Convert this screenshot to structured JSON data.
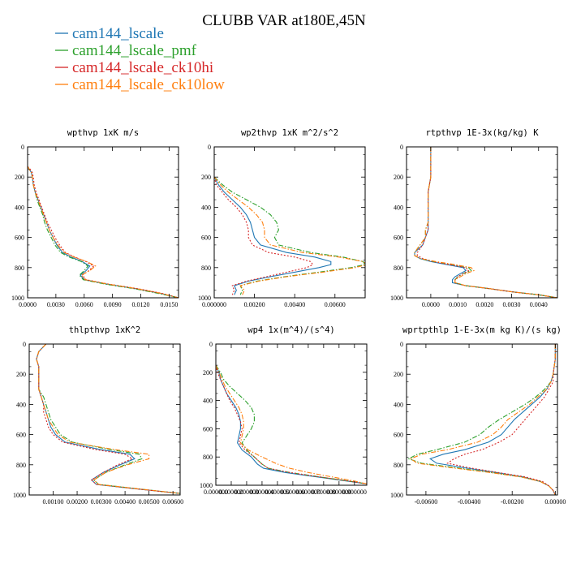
{
  "figure": {
    "title": "CLUBB VAR at180E,45N"
  },
  "legend": [
    {
      "name": "cam144_lscale",
      "color": "#1f77b4",
      "dash": "solid"
    },
    {
      "name": "cam144_lscale_pmf",
      "color": "#2ca02c",
      "dash": "dashdot"
    },
    {
      "name": "cam144_lscale_ck10hi",
      "color": "#d62728",
      "dash": "dot"
    },
    {
      "name": "cam144_lscale_ck10low",
      "color": "#ff7f0e",
      "dash": "dashdot"
    }
  ],
  "chart_data": [
    {
      "type": "line",
      "title": "wpthvp  1xK m/s",
      "xlim": [
        0,
        0.016
      ],
      "ylim": [
        1000,
        0
      ],
      "xticks": [
        "0.0000",
        "0.0030",
        "0.0060",
        "0.0090",
        "0.0120",
        "0.0150"
      ],
      "xtick_values": [
        0,
        0.003,
        0.006,
        0.009,
        0.012,
        0.015
      ],
      "yticks": [
        "0",
        "200",
        "400",
        "600",
        "800",
        "1000"
      ],
      "y": [
        130,
        150,
        170,
        200,
        250,
        300,
        350,
        400,
        450,
        500,
        550,
        600,
        650,
        700,
        730,
        760,
        790,
        820,
        850,
        880,
        910,
        940,
        970,
        1000
      ],
      "series": [
        {
          "name": "cam144_lscale",
          "x": [
            0.0,
            0.0002,
            0.0004,
            0.0005,
            0.0006,
            0.0008,
            0.0011,
            0.0014,
            0.0017,
            0.002,
            0.0023,
            0.0027,
            0.0031,
            0.0037,
            0.0046,
            0.0058,
            0.0066,
            0.0062,
            0.0056,
            0.006,
            0.0085,
            0.0115,
            0.014,
            0.016
          ]
        },
        {
          "name": "cam144_lscale_pmf",
          "x": [
            0.0,
            0.0002,
            0.0004,
            0.0005,
            0.0006,
            0.0008,
            0.001,
            0.0013,
            0.0016,
            0.0018,
            0.0021,
            0.0025,
            0.0029,
            0.0035,
            0.0044,
            0.0057,
            0.0064,
            0.006,
            0.0055,
            0.0059,
            0.0083,
            0.0113,
            0.0138,
            0.016
          ]
        },
        {
          "name": "cam144_lscale_ck10hi",
          "x": [
            0.0,
            0.0003,
            0.0005,
            0.0006,
            0.0007,
            0.0009,
            0.0012,
            0.0015,
            0.0018,
            0.0021,
            0.0025,
            0.0029,
            0.0034,
            0.004,
            0.005,
            0.0062,
            0.007,
            0.0065,
            0.0058,
            0.0062,
            0.0087,
            0.0117,
            0.0142,
            0.016
          ]
        },
        {
          "name": "cam144_lscale_ck10low",
          "x": [
            0.0,
            0.0002,
            0.0004,
            0.0005,
            0.0006,
            0.0008,
            0.0011,
            0.0014,
            0.0017,
            0.002,
            0.0023,
            0.0027,
            0.0032,
            0.0039,
            0.0049,
            0.0063,
            0.0072,
            0.0066,
            0.0057,
            0.0061,
            0.0086,
            0.0116,
            0.0141,
            0.016
          ]
        }
      ]
    },
    {
      "type": "line",
      "title": "wp2thvp  1xK m^2/s^2",
      "xlim": [
        0,
        0.0075
      ],
      "ylim": [
        1000,
        0
      ],
      "xticks": [
        "0.000000",
        "0.00200",
        "0.00400",
        "0.00600"
      ],
      "xtick_values": [
        0,
        0.002,
        0.004,
        0.006
      ],
      "yticks": [
        "0",
        "200",
        "400",
        "600",
        "800",
        "1000"
      ],
      "y": [
        200,
        250,
        300,
        350,
        400,
        450,
        500,
        550,
        600,
        650,
        700,
        730,
        760,
        780,
        800,
        830,
        860,
        890,
        920,
        950,
        980
      ],
      "series": [
        {
          "name": "cam144_lscale",
          "x": [
            0.0,
            0.0002,
            0.0005,
            0.0009,
            0.0013,
            0.0016,
            0.0018,
            0.0019,
            0.002,
            0.0023,
            0.0036,
            0.005,
            0.0058,
            0.0058,
            0.0052,
            0.004,
            0.0028,
            0.0017,
            0.001,
            0.0011,
            0.001
          ]
        },
        {
          "name": "cam144_lscale_pmf",
          "x": [
            0.0,
            0.0004,
            0.0009,
            0.0016,
            0.0023,
            0.0028,
            0.0031,
            0.0032,
            0.003,
            0.0032,
            0.0048,
            0.0064,
            0.0074,
            0.0075,
            0.0068,
            0.0052,
            0.0035,
            0.0021,
            0.0013,
            0.0014,
            0.0013
          ]
        },
        {
          "name": "cam144_lscale_ck10hi",
          "x": [
            0.0,
            0.0001,
            0.0004,
            0.0007,
            0.0011,
            0.0014,
            0.0016,
            0.0017,
            0.0017,
            0.0019,
            0.0027,
            0.004,
            0.0048,
            0.0049,
            0.0046,
            0.0036,
            0.0026,
            0.0016,
            0.0009,
            0.001,
            0.0009
          ]
        },
        {
          "name": "cam144_lscale_ck10low",
          "x": [
            0.0,
            0.0003,
            0.0007,
            0.0012,
            0.0017,
            0.0021,
            0.0024,
            0.0025,
            0.0025,
            0.0028,
            0.0044,
            0.0062,
            0.0074,
            0.0076,
            0.007,
            0.0054,
            0.0036,
            0.0022,
            0.0013,
            0.0015,
            0.0014
          ]
        }
      ]
    },
    {
      "type": "line",
      "title": "rtpthvp  1E-3x(kg/kg) K",
      "xlim": [
        -0.0009,
        0.0047
      ],
      "ylim": [
        1000,
        0
      ],
      "xticks": [
        "0.0000",
        "0.0010",
        "0.0020",
        "0.0030",
        "0.0040"
      ],
      "xtick_values": [
        0,
        0.001,
        0.002,
        0.003,
        0.004
      ],
      "yticks": [
        "0",
        "200",
        "400",
        "600",
        "800",
        "1000"
      ],
      "y": [
        0,
        100,
        200,
        300,
        400,
        500,
        550,
        600,
        650,
        700,
        720,
        740,
        760,
        780,
        800,
        820,
        840,
        860,
        880,
        900,
        920,
        940,
        960,
        980,
        1000
      ],
      "series": [
        {
          "name": "cam144_lscale",
          "x": [
            0.0,
            0.0,
            0.0,
            -0.0001,
            -0.0001,
            -0.0001,
            -0.0001,
            -0.0002,
            -0.0003,
            -0.0006,
            -0.0006,
            -0.0004,
            0.0,
            0.0006,
            0.0012,
            0.0013,
            0.0011,
            0.0009,
            0.0008,
            0.0008,
            0.0013,
            0.0022,
            0.003,
            0.004,
            0.0047
          ]
        },
        {
          "name": "cam144_lscale_pmf",
          "x": [
            0.0,
            0.0,
            0.0,
            -0.0001,
            -0.0001,
            -0.0001,
            -0.0002,
            -0.0002,
            -0.0004,
            -0.0006,
            -0.0006,
            -0.0004,
            0.0001,
            0.0008,
            0.0014,
            0.0015,
            0.0012,
            0.001,
            0.0009,
            0.0009,
            0.0013,
            0.0022,
            0.003,
            0.004,
            0.0047
          ]
        },
        {
          "name": "cam144_lscale_ck10hi",
          "x": [
            0.0,
            0.0,
            0.0,
            -0.0001,
            -0.0001,
            -0.0001,
            -0.0001,
            -0.0002,
            -0.0003,
            -0.0005,
            -0.0005,
            -0.0003,
            0.0001,
            0.0007,
            0.0013,
            0.0014,
            0.0012,
            0.001,
            0.0009,
            0.0009,
            0.0013,
            0.0022,
            0.003,
            0.004,
            0.0047
          ]
        },
        {
          "name": "cam144_lscale_ck10low",
          "x": [
            0.0,
            0.0,
            0.0,
            -0.0001,
            -0.0001,
            -0.0001,
            -0.0002,
            -0.0002,
            -0.0004,
            -0.0006,
            -0.0006,
            -0.0004,
            0.0002,
            0.0009,
            0.0015,
            0.0016,
            0.0013,
            0.0011,
            0.0009,
            0.0009,
            0.0013,
            0.0022,
            0.003,
            0.004,
            0.0047
          ]
        }
      ]
    },
    {
      "type": "line",
      "title": "thlpthvp  1xK^2",
      "xlim": [
        0,
        0.0063
      ],
      "ylim": [
        1000,
        0
      ],
      "xticks": [
        "0.00100",
        "0.00200",
        "0.00300",
        "0.00400",
        "0.00500",
        "0.00600"
      ],
      "xtick_values": [
        0.001,
        0.002,
        0.003,
        0.004,
        0.005,
        0.006
      ],
      "yticks": [
        "0",
        "200",
        "400",
        "600",
        "800",
        "1000"
      ],
      "y": [
        0,
        50,
        100,
        150,
        200,
        250,
        300,
        350,
        400,
        450,
        500,
        550,
        600,
        650,
        700,
        730,
        760,
        800,
        850,
        900,
        930,
        960,
        990
      ],
      "series": [
        {
          "name": "cam144_lscale",
          "x": [
            0.0007,
            0.0004,
            0.0003,
            0.0004,
            0.0004,
            0.0004,
            0.0004,
            0.0005,
            0.0006,
            0.0007,
            0.0008,
            0.0009,
            0.0011,
            0.0015,
            0.003,
            0.0042,
            0.0044,
            0.0038,
            0.0031,
            0.0026,
            0.0028,
            0.0045,
            0.0063
          ]
        },
        {
          "name": "cam144_lscale_pmf",
          "x": [
            0.0007,
            0.0004,
            0.0003,
            0.0004,
            0.0004,
            0.0004,
            0.0004,
            0.0006,
            0.0007,
            0.0008,
            0.0009,
            0.0011,
            0.0013,
            0.0018,
            0.0034,
            0.0046,
            0.0047,
            0.004,
            0.0032,
            0.0027,
            0.0029,
            0.0046,
            0.0063
          ]
        },
        {
          "name": "cam144_lscale_ck10hi",
          "x": [
            0.0007,
            0.0004,
            0.0003,
            0.0004,
            0.0004,
            0.0004,
            0.0004,
            0.0005,
            0.0006,
            0.0006,
            0.0007,
            0.0008,
            0.001,
            0.0014,
            0.0028,
            0.004,
            0.0043,
            0.0037,
            0.0031,
            0.0026,
            0.0028,
            0.0045,
            0.0063
          ]
        },
        {
          "name": "cam144_lscale_ck10low",
          "x": [
            0.0007,
            0.0004,
            0.0003,
            0.0004,
            0.0004,
            0.0004,
            0.0004,
            0.0005,
            0.0006,
            0.0007,
            0.0008,
            0.001,
            0.0012,
            0.0017,
            0.0036,
            0.005,
            0.005,
            0.0041,
            0.0032,
            0.0027,
            0.0029,
            0.0046,
            0.0063
          ]
        }
      ]
    },
    {
      "type": "line",
      "title": "wp4  1x(m^4)/(s^4)",
      "xlim": [
        0,
        0.98
      ],
      "ylim": [
        1000,
        0
      ],
      "xticks": [
        "0.000000",
        "0.100000",
        "0.200000",
        "0.300000",
        "0.400000",
        "0.500000",
        "0.600000",
        "0.700000",
        "0.800000",
        "0.900000"
      ],
      "xtick_values": [
        0,
        0.1,
        0.2,
        0.3,
        0.4,
        0.5,
        0.6,
        0.7,
        0.8,
        0.9
      ],
      "yticks": [
        "0",
        "200",
        "400",
        "600",
        "800",
        "1000"
      ],
      "y": [
        150,
        200,
        250,
        300,
        350,
        400,
        450,
        500,
        550,
        600,
        650,
        700,
        750,
        800,
        850,
        880,
        910,
        940,
        970,
        990
      ],
      "series": [
        {
          "name": "cam144_lscale",
          "x": [
            0.0,
            0.02,
            0.03,
            0.05,
            0.07,
            0.1,
            0.13,
            0.15,
            0.16,
            0.16,
            0.15,
            0.14,
            0.17,
            0.23,
            0.27,
            0.31,
            0.45,
            0.65,
            0.85,
            0.98
          ]
        },
        {
          "name": "cam144_lscale_pmf",
          "x": [
            0.0,
            0.03,
            0.05,
            0.09,
            0.14,
            0.19,
            0.23,
            0.25,
            0.25,
            0.23,
            0.2,
            0.17,
            0.2,
            0.25,
            0.3,
            0.34,
            0.48,
            0.67,
            0.86,
            0.98
          ]
        },
        {
          "name": "cam144_lscale_ck10hi",
          "x": [
            0.0,
            0.01,
            0.03,
            0.05,
            0.07,
            0.09,
            0.12,
            0.14,
            0.16,
            0.17,
            0.16,
            0.15,
            0.19,
            0.25,
            0.3,
            0.34,
            0.48,
            0.67,
            0.86,
            0.98
          ]
        },
        {
          "name": "cam144_lscale_ck10low",
          "x": [
            0.0,
            0.02,
            0.04,
            0.06,
            0.09,
            0.12,
            0.15,
            0.17,
            0.18,
            0.18,
            0.17,
            0.16,
            0.21,
            0.3,
            0.4,
            0.48,
            0.6,
            0.75,
            0.9,
            0.98
          ]
        }
      ]
    },
    {
      "type": "line",
      "title": "wprtpthlp  1-E-3x(m kg K)/(s kg)",
      "xlim": [
        -0.0069,
        0.0001
      ],
      "ylim": [
        1000,
        0
      ],
      "xticks": [
        "-0.00600",
        "-0.00400",
        "-0.00200",
        "0.00000"
      ],
      "xtick_values": [
        -0.006,
        -0.004,
        -0.002,
        0
      ],
      "yticks": [
        "0",
        "200",
        "400",
        "600",
        "800",
        "1000"
      ],
      "y": [
        0,
        100,
        200,
        250,
        300,
        350,
        400,
        450,
        500,
        550,
        600,
        650,
        700,
        730,
        760,
        790,
        820,
        850,
        880,
        910,
        940,
        970,
        1000
      ],
      "series": [
        {
          "name": "cam144_lscale",
          "x": [
            0.0,
            0.0,
            -0.0001,
            -0.0002,
            -0.0004,
            -0.0007,
            -0.0011,
            -0.0015,
            -0.0019,
            -0.0022,
            -0.0025,
            -0.0031,
            -0.0042,
            -0.0052,
            -0.0058,
            -0.0055,
            -0.0042,
            -0.0028,
            -0.0015,
            -0.0007,
            -0.0003,
            -0.0001,
            0.0
          ]
        },
        {
          "name": "cam144_lscale_pmf",
          "x": [
            0.0,
            0.0,
            -0.0001,
            -0.0002,
            -0.0005,
            -0.0009,
            -0.0014,
            -0.002,
            -0.0026,
            -0.0031,
            -0.0035,
            -0.0042,
            -0.0055,
            -0.0064,
            -0.0068,
            -0.0062,
            -0.0046,
            -0.003,
            -0.0016,
            -0.0007,
            -0.0003,
            -0.0001,
            0.0
          ]
        },
        {
          "name": "cam144_lscale_ck10hi",
          "x": [
            0.0,
            0.0,
            -0.0001,
            -0.0001,
            -0.0003,
            -0.0005,
            -0.0008,
            -0.0011,
            -0.0014,
            -0.0017,
            -0.002,
            -0.0026,
            -0.0034,
            -0.0042,
            -0.0047,
            -0.005,
            -0.004,
            -0.0027,
            -0.0014,
            -0.0006,
            -0.0003,
            -0.0001,
            0.0
          ]
        },
        {
          "name": "cam144_lscale_ck10low",
          "x": [
            0.0,
            0.0,
            -0.0001,
            -0.0002,
            -0.0004,
            -0.0008,
            -0.0012,
            -0.0017,
            -0.0022,
            -0.0025,
            -0.0029,
            -0.0036,
            -0.005,
            -0.0062,
            -0.0067,
            -0.0064,
            -0.0048,
            -0.0031,
            -0.0016,
            -0.0007,
            -0.0003,
            -0.0001,
            0.0
          ]
        }
      ]
    }
  ]
}
